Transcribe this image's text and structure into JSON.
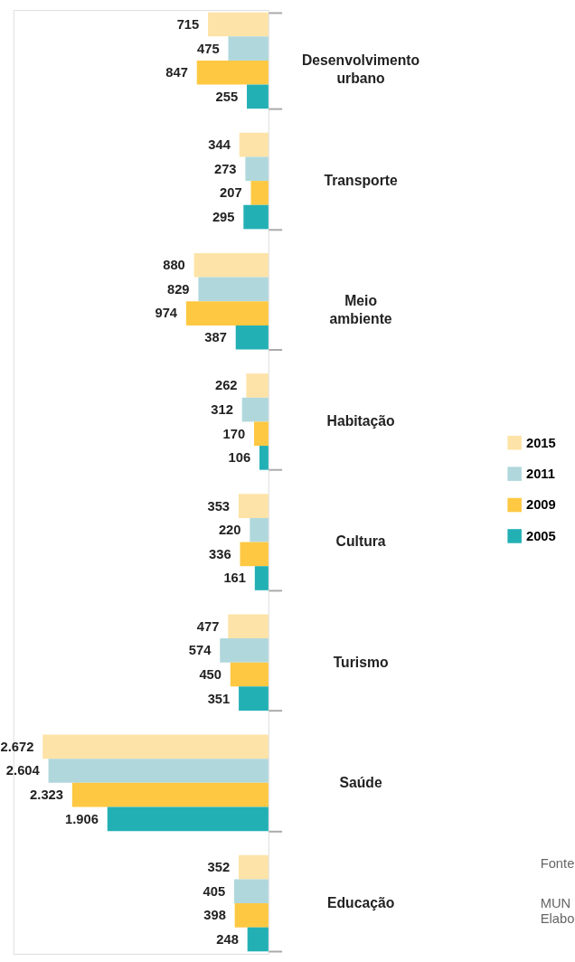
{
  "chart_data": {
    "type": "bar",
    "orientation": "horizontal",
    "categories": [
      "Desenvolvimento urbano",
      "Transporte",
      "Meio ambiente",
      "Habitação",
      "Cultura",
      "Turismo",
      "Saúde",
      "Educação"
    ],
    "series": [
      {
        "name": "2015",
        "color": "#fde3a7",
        "values": [
          715,
          344,
          880,
          262,
          353,
          477,
          2672,
          352
        ],
        "value_labels": [
          "715",
          "344",
          "880",
          "262",
          "353",
          "477",
          "2.672",
          "352"
        ]
      },
      {
        "name": "2011",
        "color": "#b0d8dc",
        "values": [
          475,
          273,
          829,
          312,
          220,
          574,
          2604,
          405
        ],
        "value_labels": [
          "475",
          "273",
          "829",
          "312",
          "220",
          "574",
          "2.604",
          "405"
        ]
      },
      {
        "name": "2009",
        "color": "#fec843",
        "values": [
          847,
          207,
          974,
          170,
          336,
          450,
          2323,
          398
        ],
        "value_labels": [
          "847",
          "207",
          "974",
          "170",
          "336",
          "450",
          "2.323",
          "398"
        ]
      },
      {
        "name": "2005",
        "color": "#23b0b5",
        "values": [
          255,
          295,
          387,
          106,
          161,
          351,
          1906,
          248
        ],
        "value_labels": [
          "255",
          "295",
          "387",
          "106",
          "161",
          "351",
          "1.906",
          "248"
        ]
      }
    ],
    "legend": "right",
    "grid": false,
    "annotations": [
      "Fonte",
      "MUN\nElabo"
    ]
  }
}
